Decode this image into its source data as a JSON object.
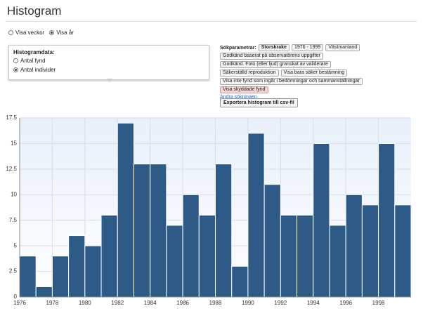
{
  "header": {
    "title": "Histogram"
  },
  "view_options": [
    "Visa veckor",
    "Visa år"
  ],
  "panel": {
    "title": "Histogramdata:",
    "options": [
      "Antal fynd",
      "Antal individer"
    ]
  },
  "params": {
    "label": "Sökparametrar:",
    "tags": [
      "Storskrake",
      "1976 - 1999",
      "Västmanland",
      "Godkänd baserat på observatörens uppgifter",
      "Godkänd. Foto (eller ljud) granskat av validerare",
      "Säkerställd reproduktion",
      "Visa bara säker bestämning",
      "Visa inte fynd som ingår i bedömningar och sammanställningar",
      "Visa skyddade fynd"
    ],
    "link": "Ändra sökningen",
    "button": "Exportera histogram till csv-fil"
  },
  "chart_data": {
    "type": "histogram",
    "bins": [
      1976,
      1977,
      1978,
      1979,
      1980,
      1981,
      1982,
      1983,
      1984,
      1985,
      1986,
      1987,
      1988,
      1989,
      1990,
      1991,
      1992,
      1993,
      1994,
      1995,
      1996,
      1997,
      1998,
      1999,
      2000
    ],
    "values": [
      4,
      1,
      4,
      6,
      5,
      8,
      17,
      13,
      13,
      7,
      10,
      8,
      13,
      3,
      16,
      11,
      8,
      8,
      15,
      7,
      10,
      9,
      15,
      9
    ],
    "color": "#2e5a88",
    "xlim": [
      1976,
      2000
    ],
    "xticks": [
      1976,
      1978,
      1980,
      1982,
      1984,
      1986,
      1988,
      1990,
      1992,
      1994,
      1996,
      1998
    ],
    "ylim": [
      0,
      17.5
    ],
    "yticks": [
      0,
      2.5,
      5,
      7.5,
      10,
      12.5,
      15,
      17.5
    ],
    "grid": true
  }
}
